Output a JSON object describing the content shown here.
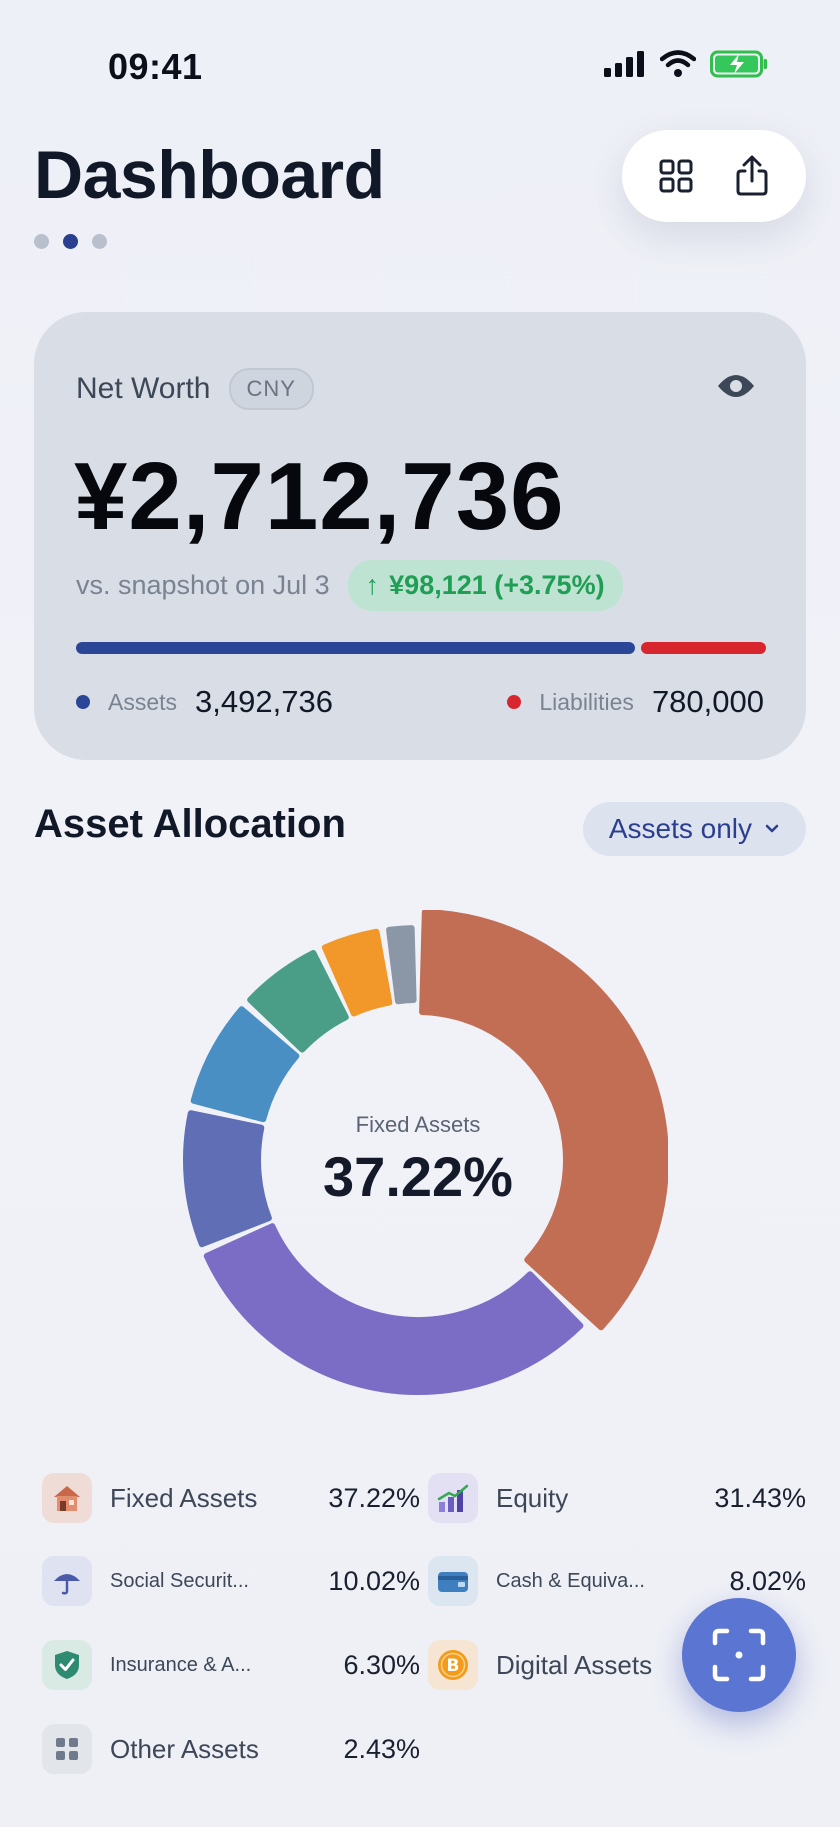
{
  "status_bar": {
    "time": "09:41",
    "icons": [
      "signal-icon",
      "wifi-icon",
      "battery-charging-icon"
    ]
  },
  "header": {
    "title": "Dashboard",
    "page_dots": {
      "count": 3,
      "active_index": 1
    },
    "actions": [
      {
        "icon": "grid-icon"
      },
      {
        "icon": "share-icon"
      }
    ]
  },
  "net_worth": {
    "label": "Net Worth",
    "currency": "CNY",
    "value": "¥2,712,736",
    "compare_text": "vs. snapshot on Jul 3",
    "change_arrow": "↑",
    "change_text": "¥98,121 (+3.75%)",
    "assets_label": "Assets",
    "assets_value": "3,492,736",
    "liabilities_label": "Liabilities",
    "liabilities_value": "780,000",
    "assets_share": 0.8175,
    "colors": {
      "assets": "#2b4696",
      "liabilities": "#d7262e",
      "change_positive": "#1f9e54"
    }
  },
  "allocation": {
    "title": "Asset Allocation",
    "filter_label": "Assets only",
    "center_label": "Fixed Assets",
    "center_value": "37.22%",
    "items": [
      {
        "label": "Fixed Assets",
        "pct": "37.22%",
        "value": 37.22,
        "color": "#c26e55",
        "icon": "house-icon",
        "icon_bg": "#f0dcd6"
      },
      {
        "label": "Equity",
        "pct": "31.43%",
        "value": 31.43,
        "color": "#7b6cc6",
        "icon": "chart-bars-icon",
        "icon_bg": "#e3e0f3"
      },
      {
        "label": "Social Securit...",
        "pct": "10.02%",
        "value": 10.02,
        "color": "#5f6eb5",
        "icon": "umbrella-icon",
        "icon_bg": "#dfe2f0"
      },
      {
        "label": "Cash & Equiva...",
        "pct": "8.02%",
        "value": 8.02,
        "color": "#4a8fc4",
        "icon": "wallet-icon",
        "icon_bg": "#dbe6f0"
      },
      {
        "label": "Insurance & A...",
        "pct": "6.30%",
        "value": 6.3,
        "color": "#4a9e88",
        "icon": "shield-check-icon",
        "icon_bg": "#d9eae4"
      },
      {
        "label": "Digital Assets",
        "pct": "",
        "value": 4.58,
        "color": "#f2972a",
        "icon": "bitcoin-icon",
        "icon_bg": "#f6e5d2"
      },
      {
        "label": "Other Assets",
        "pct": "2.43%",
        "value": 2.43,
        "color": "#8b97a6",
        "icon": "apps-icon",
        "icon_bg": "#e2e5ea"
      }
    ]
  },
  "fab": {
    "icon": "scan-icon"
  }
}
